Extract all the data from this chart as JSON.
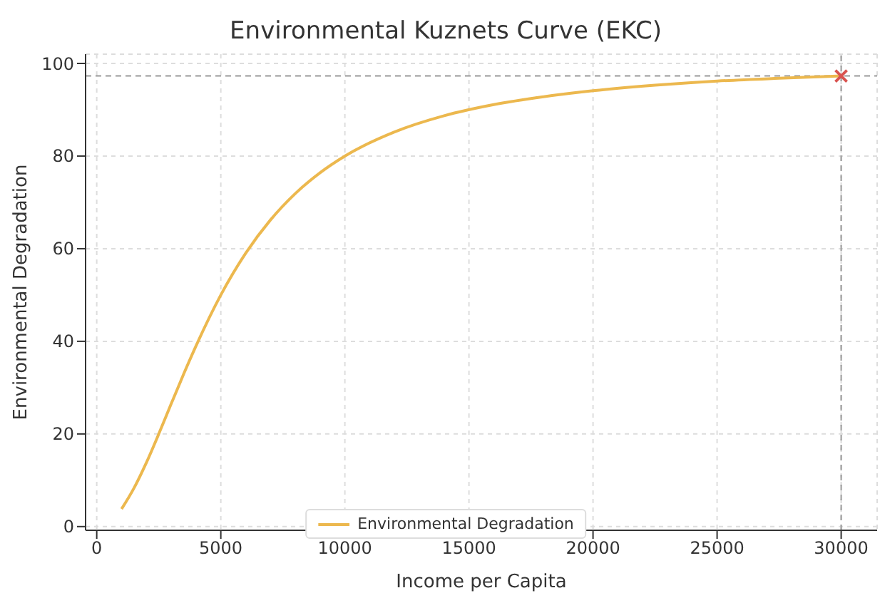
{
  "chart_data": {
    "type": "line",
    "title": "Environmental Kuznets Curve (EKC)",
    "xlabel": "Income per Capita",
    "ylabel": "Environmental Degradation",
    "x": [
      1000,
      1500,
      2000,
      2500,
      3000,
      3500,
      4000,
      5000,
      6000,
      7000,
      8000,
      9000,
      10000,
      12000,
      14000,
      16000,
      18000,
      20000,
      22500,
      25000,
      27500,
      30000
    ],
    "series": [
      {
        "name": "Environmental Degradation",
        "color": "#ecb84e",
        "values": [
          3.8,
          8.3,
          13.8,
          20,
          26.5,
          32.9,
          39,
          50,
          59,
          66.2,
          71.9,
          76.4,
          80,
          85.2,
          88.7,
          91.1,
          92.8,
          94.1,
          95.3,
          96.2,
          96.8,
          97.3
        ],
        "marker": "none"
      },
      {
        "type": "scatter",
        "color": "#d9534f",
        "x": [
          30000
        ],
        "values": [
          97.3
        ],
        "marker": "cross"
      }
    ],
    "ref_lines": [
      {
        "axis": "y",
        "value": 97.3,
        "color": "#999999",
        "line_style": "dashed"
      },
      {
        "axis": "x",
        "value": 30000,
        "color": "#999999",
        "line_style": "dashed"
      }
    ],
    "xlim": [
      -450,
      31450
    ],
    "xticks": [
      0,
      5000,
      10000,
      15000,
      20000,
      25000,
      30000
    ],
    "ylim": [
      -0.8,
      102
    ],
    "yticks": [
      0,
      20,
      40,
      60,
      80,
      100
    ],
    "grid": true,
    "legend": "bottom"
  }
}
